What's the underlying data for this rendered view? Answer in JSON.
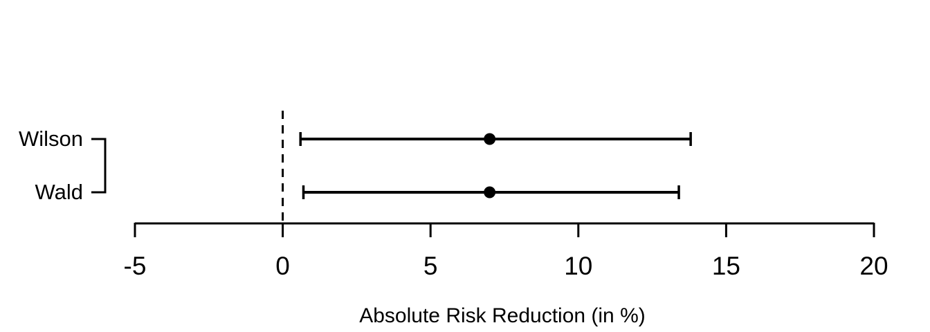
{
  "chart_data": {
    "type": "scatter",
    "subtype": "forest-plot-errorbars",
    "title": "",
    "xlabel": "Absolute Risk Reduction (in %)",
    "ylabel": "",
    "xlim": [
      -5,
      20
    ],
    "xtick_values": [
      -5,
      0,
      5,
      10,
      15,
      20
    ],
    "xticks": [
      "-5",
      "0",
      "5",
      "10",
      "15",
      "20"
    ],
    "grid": false,
    "legend": "none",
    "reference_line": {
      "value": 0,
      "style": "dashed"
    },
    "categories": [
      "Wilson",
      "Wald"
    ],
    "series": [
      {
        "name": "Wilson",
        "estimate": 7.0,
        "ci_lower": 0.6,
        "ci_upper": 13.8
      },
      {
        "name": "Wald",
        "estimate": 7.0,
        "ci_lower": 0.7,
        "ci_upper": 13.4
      }
    ],
    "colors": {
      "foreground": "#000000",
      "background": "#ffffff"
    }
  }
}
